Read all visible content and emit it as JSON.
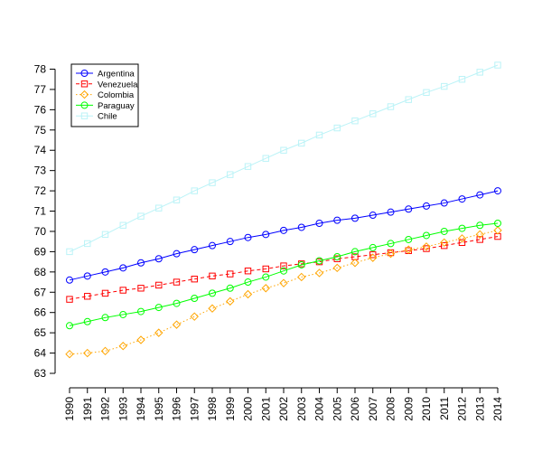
{
  "chart_data": {
    "type": "line",
    "title": "",
    "xlabel": "",
    "ylabel": "",
    "ylim": [
      63,
      78
    ],
    "yticks": [
      63,
      64,
      65,
      66,
      67,
      68,
      69,
      70,
      71,
      72,
      73,
      74,
      75,
      76,
      77,
      78
    ],
    "categories": [
      "1990",
      "1991",
      "1992",
      "1993",
      "1994",
      "1995",
      "1996",
      "1997",
      "1998",
      "1999",
      "2000",
      "2001",
      "2002",
      "2003",
      "2004",
      "2005",
      "2006",
      "2007",
      "2008",
      "2009",
      "2010",
      "2011",
      "2012",
      "2013",
      "2014"
    ],
    "legend_position": "top-left",
    "series": [
      {
        "name": "Argentina",
        "color": "#0000ff",
        "line_style": "solid",
        "marker": "circle",
        "values": [
          67.6,
          67.8,
          68.0,
          68.2,
          68.45,
          68.65,
          68.9,
          69.1,
          69.3,
          69.5,
          69.7,
          69.85,
          70.05,
          70.2,
          70.4,
          70.55,
          70.65,
          70.8,
          70.95,
          71.1,
          71.25,
          71.4,
          71.6,
          71.8,
          72.0
        ]
      },
      {
        "name": "Venezuela",
        "color": "#ff0000",
        "line_style": "dashed",
        "marker": "square",
        "values": [
          66.65,
          66.8,
          66.95,
          67.1,
          67.2,
          67.35,
          67.5,
          67.65,
          67.8,
          67.9,
          68.05,
          68.15,
          68.3,
          68.4,
          68.5,
          68.65,
          68.75,
          68.85,
          68.95,
          69.05,
          69.15,
          69.3,
          69.45,
          69.6,
          69.75
        ]
      },
      {
        "name": "Colombia",
        "color": "#ffa500",
        "line_style": "dotted",
        "marker": "diamond",
        "values": [
          63.95,
          64.0,
          64.1,
          64.35,
          64.65,
          65.0,
          65.4,
          65.8,
          66.2,
          66.55,
          66.9,
          67.2,
          67.45,
          67.75,
          67.95,
          68.2,
          68.45,
          68.7,
          68.9,
          69.1,
          69.25,
          69.45,
          69.65,
          69.85,
          70.05
        ]
      },
      {
        "name": "Paraguay",
        "color": "#00ff00",
        "line_style": "solid",
        "marker": "circle",
        "values": [
          65.35,
          65.55,
          65.75,
          65.9,
          66.05,
          66.25,
          66.45,
          66.7,
          66.95,
          67.2,
          67.5,
          67.75,
          68.05,
          68.35,
          68.55,
          68.75,
          69.0,
          69.2,
          69.4,
          69.6,
          69.8,
          70.0,
          70.15,
          70.3,
          70.4
        ]
      },
      {
        "name": "Chile",
        "color": "#bbf3f7",
        "line_style": "solid",
        "marker": "square",
        "values": [
          69.0,
          69.4,
          69.85,
          70.3,
          70.75,
          71.15,
          71.55,
          72.0,
          72.4,
          72.8,
          73.2,
          73.6,
          74.0,
          74.35,
          74.75,
          75.1,
          75.45,
          75.8,
          76.15,
          76.5,
          76.85,
          77.15,
          77.5,
          77.85,
          78.2
        ]
      }
    ]
  }
}
